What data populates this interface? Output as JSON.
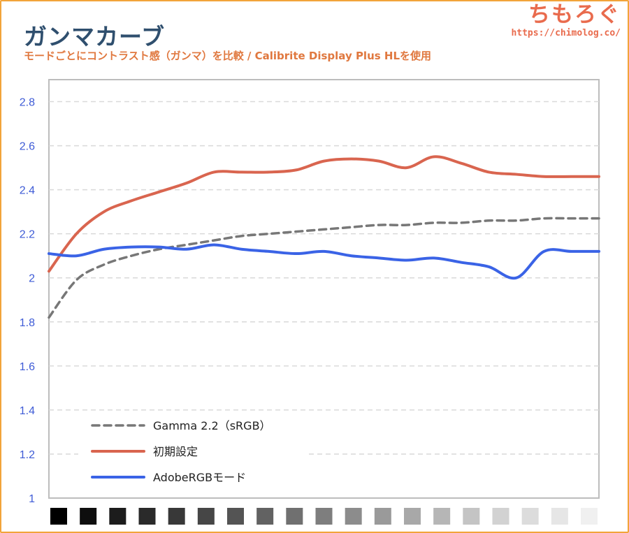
{
  "header": {
    "title": "ガンマカーブ",
    "subtitle": "モードごとにコントラスト感（ガンマ）を比較 / Calibrite Display Plus HLを使用",
    "brand_name": "ちもろぐ",
    "brand_url": "https://chimolog.co/"
  },
  "chart_data": {
    "type": "line",
    "title": "ガンマカーブ",
    "subtitle": "モードごとにコントラスト感（ガンマ）を比較 / Calibrite Display Plus HLを使用",
    "xlabel": "",
    "ylabel": "",
    "ylim": [
      1,
      2.9
    ],
    "yticks": [
      "1",
      "1.2",
      "1.4",
      "1.6",
      "1.8",
      "2",
      "2.2",
      "2.4",
      "2.6",
      "2.8"
    ],
    "ytick_values": [
      1,
      1.2,
      1.4,
      1.6,
      1.8,
      2,
      2.2,
      2.4,
      2.6,
      2.8
    ],
    "grid": true,
    "legend_position": "bottom-left",
    "x_gray_steps": [
      "#000000",
      "#0e0e0e",
      "#1c1c1c",
      "#2a2a2a",
      "#383838",
      "#464646",
      "#545454",
      "#626262",
      "#707070",
      "#7e7e7e",
      "#8c8c8c",
      "#9a9a9a",
      "#a8a8a8",
      "#b6b6b6",
      "#c4c4c4",
      "#d2d2d2",
      "#dcdcdc",
      "#e6e6e6",
      "#f0f0f0"
    ],
    "x": [
      0,
      0.05,
      0.1,
      0.15,
      0.2,
      0.25,
      0.3,
      0.35,
      0.4,
      0.45,
      0.5,
      0.55,
      0.6,
      0.65,
      0.7,
      0.75,
      0.8,
      0.85,
      0.9,
      0.95,
      1.0
    ],
    "series": [
      {
        "name": "Gamma 2.2（sRGB）",
        "color": "#777777",
        "dashed": true,
        "values": [
          1.82,
          1.99,
          2.06,
          2.1,
          2.13,
          2.15,
          2.17,
          2.19,
          2.2,
          2.21,
          2.22,
          2.23,
          2.24,
          2.24,
          2.25,
          2.25,
          2.26,
          2.26,
          2.27,
          2.27,
          2.27
        ]
      },
      {
        "name": "初期設定",
        "color": "#d9654f",
        "dashed": false,
        "values": [
          2.03,
          2.2,
          2.3,
          2.35,
          2.39,
          2.43,
          2.48,
          2.48,
          2.48,
          2.49,
          2.53,
          2.54,
          2.53,
          2.5,
          2.55,
          2.52,
          2.48,
          2.47,
          2.46,
          2.46,
          2.46
        ]
      },
      {
        "name": "AdobeRGBモード",
        "color": "#3a63e6",
        "dashed": false,
        "values": [
          2.11,
          2.1,
          2.13,
          2.14,
          2.14,
          2.13,
          2.15,
          2.13,
          2.12,
          2.11,
          2.12,
          2.1,
          2.09,
          2.08,
          2.09,
          2.07,
          2.05,
          2.0,
          2.12,
          2.12,
          2.12
        ]
      }
    ]
  }
}
